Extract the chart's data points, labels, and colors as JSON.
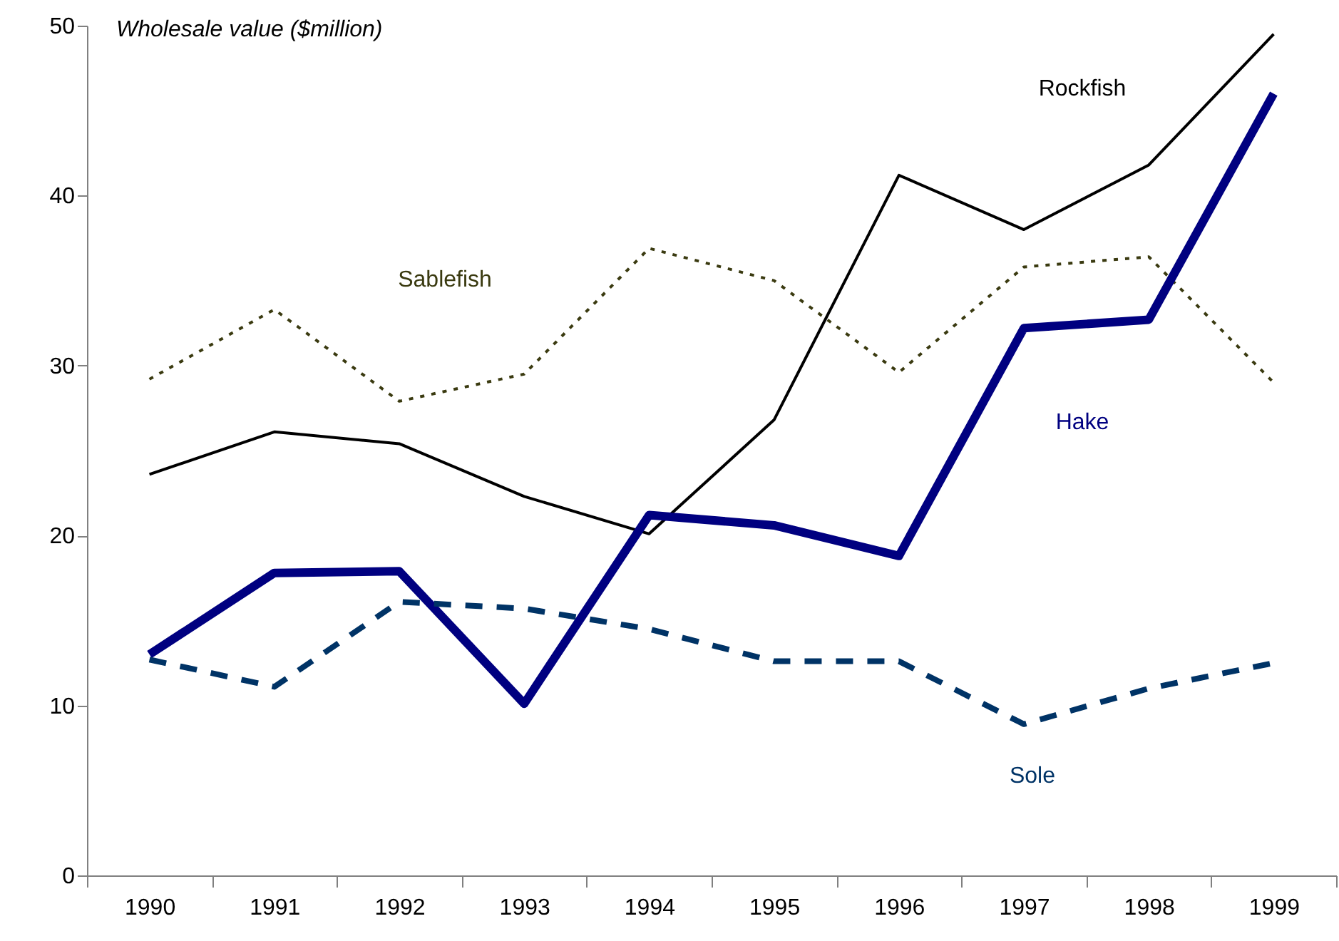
{
  "chart_data": {
    "type": "line",
    "ylabel": "Wholesale value ($million)",
    "categories": [
      "1990",
      "1991",
      "1992",
      "1993",
      "1994",
      "1995",
      "1996",
      "1997",
      "1998",
      "1999"
    ],
    "ylim": [
      0,
      50
    ],
    "yticks": [
      0,
      10,
      20,
      30,
      40,
      50
    ],
    "grid": false,
    "legend": false,
    "series": [
      {
        "name": "Rockfish",
        "color": "#000000",
        "line_style": "solid",
        "values": [
          23.6,
          26.1,
          25.4,
          22.3,
          20.1,
          26.8,
          41.2,
          38.0,
          41.8,
          49.5
        ]
      },
      {
        "name": "Sablefish",
        "color": "#3a3a10",
        "line_style": "dotted",
        "values": [
          29.2,
          33.3,
          27.9,
          29.5,
          36.9,
          35.0,
          29.6,
          35.8,
          36.4,
          29.0
        ]
      },
      {
        "name": "Hake",
        "color": "#000080",
        "line_style": "solid",
        "values": [
          13.0,
          17.8,
          17.9,
          10.1,
          21.2,
          20.6,
          18.8,
          32.2,
          32.7,
          46.0
        ]
      },
      {
        "name": "Sole",
        "color": "#003366",
        "line_style": "dashed",
        "values": [
          12.7,
          11.1,
          16.1,
          15.7,
          14.5,
          12.6,
          12.6,
          8.9,
          11.0,
          12.5
        ]
      }
    ]
  }
}
